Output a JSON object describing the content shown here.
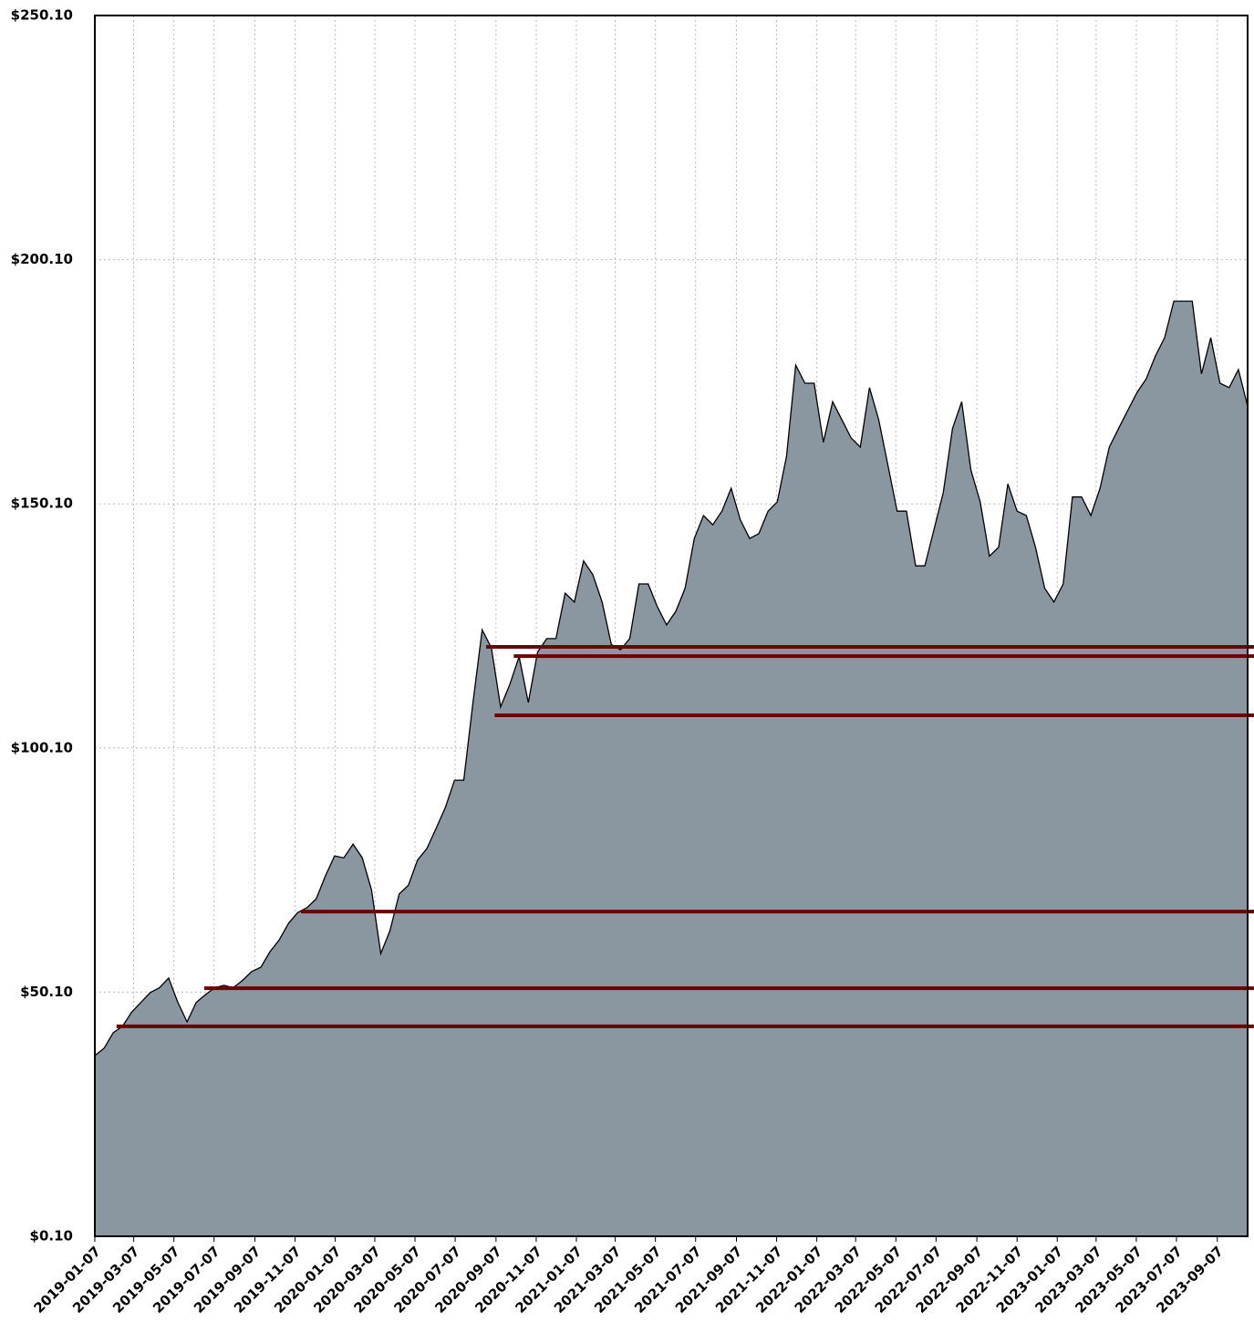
{
  "chart_data": {
    "type": "area",
    "x": [
      "2019-01-07",
      "2019-01-21",
      "2019-02-04",
      "2019-02-18",
      "2019-03-04",
      "2019-03-18",
      "2019-04-01",
      "2019-04-15",
      "2019-04-29",
      "2019-05-13",
      "2019-05-27",
      "2019-06-10",
      "2019-06-24",
      "2019-07-08",
      "2019-07-22",
      "2019-08-05",
      "2019-08-19",
      "2019-09-02",
      "2019-09-16",
      "2019-09-30",
      "2019-10-14",
      "2019-10-28",
      "2019-11-11",
      "2019-11-25",
      "2019-12-09",
      "2019-12-23",
      "2020-01-06",
      "2020-01-20",
      "2020-02-03",
      "2020-02-17",
      "2020-03-02",
      "2020-03-16",
      "2020-03-30",
      "2020-04-13",
      "2020-04-27",
      "2020-05-11",
      "2020-05-25",
      "2020-06-08",
      "2020-06-22",
      "2020-07-06",
      "2020-07-20",
      "2020-08-03",
      "2020-08-17",
      "2020-08-31",
      "2020-09-14",
      "2020-09-28",
      "2020-10-12",
      "2020-10-26",
      "2020-11-09",
      "2020-11-23",
      "2020-12-07",
      "2020-12-21",
      "2021-01-04",
      "2021-01-18",
      "2021-02-01",
      "2021-02-15",
      "2021-03-01",
      "2021-03-15",
      "2021-03-29",
      "2021-04-12",
      "2021-04-26",
      "2021-05-10",
      "2021-05-24",
      "2021-06-07",
      "2021-06-21",
      "2021-07-05",
      "2021-07-19",
      "2021-08-02",
      "2021-08-16",
      "2021-08-30",
      "2021-09-13",
      "2021-09-27",
      "2021-10-11",
      "2021-10-25",
      "2021-11-08",
      "2021-11-22",
      "2021-12-06",
      "2021-12-20",
      "2022-01-03",
      "2022-01-17",
      "2022-01-31",
      "2022-02-14",
      "2022-02-28",
      "2022-03-14",
      "2022-03-28",
      "2022-04-11",
      "2022-04-25",
      "2022-05-09",
      "2022-05-23",
      "2022-06-06",
      "2022-06-20",
      "2022-07-04",
      "2022-07-18",
      "2022-08-01",
      "2022-08-15",
      "2022-08-29",
      "2022-09-12",
      "2022-09-26",
      "2022-10-10",
      "2022-10-24",
      "2022-11-07",
      "2022-11-21",
      "2022-12-05",
      "2022-12-19",
      "2023-01-02",
      "2023-01-16",
      "2023-01-30",
      "2023-02-13",
      "2023-02-27",
      "2023-03-13",
      "2023-03-27",
      "2023-04-10",
      "2023-04-24",
      "2023-05-08",
      "2023-05-22",
      "2023-06-05",
      "2023-06-19",
      "2023-07-03",
      "2023-07-17",
      "2023-07-31",
      "2023-08-14",
      "2023-08-28",
      "2023-09-11",
      "2023-09-25",
      "2023-10-09",
      "2023-10-23"
    ],
    "values": [
      37.1,
      38.6,
      41.8,
      43.1,
      46,
      48,
      50,
      51,
      53,
      48,
      44,
      48,
      49.6,
      51,
      51.5,
      51,
      52.5,
      54.3,
      55.2,
      58.4,
      60.8,
      64.2,
      66.4,
      67.4,
      69.2,
      73.9,
      78,
      77.6,
      80.4,
      77.6,
      71,
      58,
      62.7,
      70.2,
      72,
      77.2,
      79.5,
      83.6,
      87.9,
      93.5,
      93.5,
      109.4,
      124.3,
      120.6,
      108.5,
      113.1,
      118.8,
      109.4,
      119.7,
      122.5,
      122.5,
      131.8,
      130,
      138.4,
      135.6,
      130,
      121.3,
      120.2,
      122.5,
      133.7,
      133.7,
      129,
      125.3,
      128.1,
      132.8,
      143,
      147.7,
      145.8,
      148.6,
      153.3,
      146.8,
      143,
      144,
      148.6,
      150.5,
      159.8,
      178.5,
      174.8,
      174.8,
      162.7,
      171,
      167.3,
      163.6,
      161.7,
      173.9,
      167.3,
      158,
      148.6,
      148.6,
      137.4,
      137.4,
      144.9,
      152.4,
      165.5,
      171,
      157,
      150.5,
      139.4,
      141.2,
      154.2,
      148.6,
      147.7,
      141.2,
      132.8,
      130,
      133.7,
      151.5,
      151.5,
      147.7,
      153.3,
      161.7,
      165.5,
      169.2,
      172.9,
      175.7,
      180.4,
      184.1,
      191.6,
      191.6,
      191.6,
      176.7,
      184.1,
      174.8,
      173.9,
      177.6,
      170.1
    ],
    "color": "#8a96a0",
    "line_color": "#000000",
    "levels": [
      {
        "x": "2020-08-23",
        "value": 120.8
      },
      {
        "x": "2020-10-04",
        "value": 118.9
      },
      {
        "x": "2020-09-05",
        "value": 106.8
      },
      {
        "x": "2019-11-16",
        "value": 66.6
      },
      {
        "x": "2019-06-22",
        "value": 50.9
      },
      {
        "x": "2019-02-09",
        "value": 43.1
      }
    ],
    "level_color": "#6b0000",
    "xlim": [
      "2019-01-07",
      "2023-10-23"
    ],
    "xticks": [
      "2019-01-07",
      "2019-03-07",
      "2019-05-07",
      "2019-07-07",
      "2019-09-07",
      "2019-11-07",
      "2020-01-07",
      "2020-03-07",
      "2020-05-07",
      "2020-07-07",
      "2020-09-07",
      "2020-11-07",
      "2021-01-07",
      "2021-03-07",
      "2021-05-07",
      "2021-07-07",
      "2021-09-07",
      "2021-11-07",
      "2022-01-07",
      "2022-03-07",
      "2022-05-07",
      "2022-07-07",
      "2022-09-07",
      "2022-11-07",
      "2023-01-07",
      "2023-03-07",
      "2023-05-07",
      "2023-07-07",
      "2023-09-07"
    ],
    "ylim": [
      0.1,
      250.1
    ],
    "yticks": [
      {
        "value": 0.1,
        "label": "$0.10"
      },
      {
        "value": 50.1,
        "label": "$50.10"
      },
      {
        "value": 100.1,
        "label": "$100.10"
      },
      {
        "value": 150.1,
        "label": "$150.10"
      },
      {
        "value": 200.1,
        "label": "$200.10"
      },
      {
        "value": 250.1,
        "label": "$250.10"
      }
    ],
    "grid": true
  }
}
